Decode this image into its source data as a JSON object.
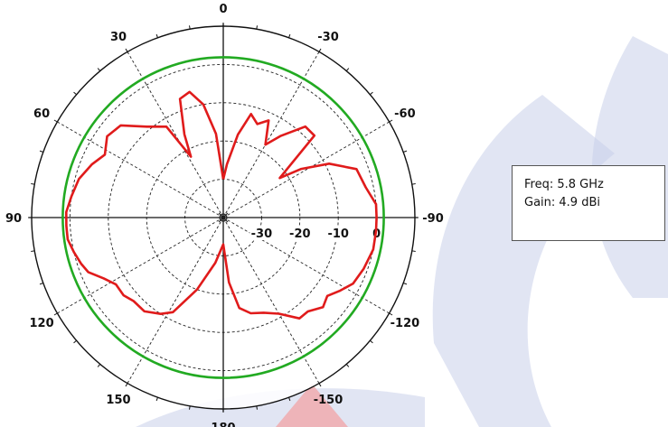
{
  "chart_data": {
    "type": "polar-line",
    "title": "",
    "angular_axis": {
      "unit": "deg",
      "direction": "clockwise-negative",
      "zero_at": "top",
      "tick_labels": [
        {
          "angle": 0,
          "text": "0"
        },
        {
          "angle": 30,
          "text": "30"
        },
        {
          "angle": 60,
          "text": "60"
        },
        {
          "angle": 90,
          "text": "90"
        },
        {
          "angle": 120,
          "text": "120"
        },
        {
          "angle": 150,
          "text": "150"
        },
        {
          "angle": 180,
          "text": "180"
        },
        {
          "angle": -150,
          "text": "-150"
        },
        {
          "angle": -120,
          "text": "-120"
        },
        {
          "angle": -90,
          "text": "-90"
        },
        {
          "angle": -60,
          "text": "-60"
        },
        {
          "angle": -30,
          "text": "-30"
        }
      ]
    },
    "radial_axis": {
      "unit": "dB",
      "range": [
        -40,
        10
      ],
      "rings": [
        -30,
        -20,
        -10,
        0
      ],
      "tick_labels": [
        "-30",
        "-20",
        "-10",
        "0"
      ]
    },
    "reference_circle": {
      "value": 0,
      "color": "#22aa22"
    },
    "series": [
      {
        "color": "#e01b1b",
        "points": [
          [
            0,
            -30
          ],
          [
            5,
            -18
          ],
          [
            10,
            -10
          ],
          [
            15,
            -6
          ],
          [
            20,
            -7
          ],
          [
            25,
            -16
          ],
          [
            28,
            -22
          ],
          [
            32,
            -12
          ],
          [
            40,
            -9
          ],
          [
            48,
            -4
          ],
          [
            55,
            -3
          ],
          [
            62,
            -5
          ],
          [
            68,
            -3
          ],
          [
            75,
            -1
          ],
          [
            82,
            0
          ],
          [
            88,
            1
          ],
          [
            93,
            1
          ],
          [
            98,
            1
          ],
          [
            103,
            0
          ],
          [
            108,
            -1
          ],
          [
            112,
            -2
          ],
          [
            117,
            -5
          ],
          [
            122,
            -7
          ],
          [
            128,
            -7
          ],
          [
            133,
            -8
          ],
          [
            140,
            -8
          ],
          [
            147,
            -10
          ],
          [
            152,
            -12
          ],
          [
            160,
            -20
          ],
          [
            170,
            -28
          ],
          [
            180,
            -33
          ],
          [
            185,
            -23
          ],
          [
            190,
            -16
          ],
          [
            196,
            -14
          ],
          [
            203,
            -13
          ],
          [
            210,
            -11
          ],
          [
            217,
            -7
          ],
          [
            222,
            -7
          ],
          [
            228,
            -5
          ],
          [
            233,
            -6
          ],
          [
            238,
            -4
          ],
          [
            243,
            -2
          ],
          [
            250,
            -1
          ],
          [
            258,
            0
          ],
          [
            265,
            0
          ],
          [
            270,
            0
          ],
          [
            275,
            0
          ],
          [
            282,
            -2
          ],
          [
            290,
            -3
          ],
          [
            297,
            -9
          ],
          [
            302,
            -16
          ],
          [
            305,
            -22
          ],
          [
            312,
            -8
          ],
          [
            318,
            -8
          ],
          [
            325,
            -14
          ],
          [
            330,
            -18
          ],
          [
            335,
            -12
          ],
          [
            340,
            -14
          ],
          [
            345,
            -12
          ],
          [
            350,
            -18
          ],
          [
            356,
            -26
          ],
          [
            360,
            -30
          ]
        ]
      }
    ],
    "grid": true
  },
  "info": {
    "freq": "Freq: 5.8 GHz",
    "gain": "Gain: 4.9 dBi"
  },
  "colors": {
    "watermark": "#c9cfe9",
    "watermark_accent": "#f4a0a0",
    "grid": "#222222",
    "outer_ring": "#111111"
  }
}
